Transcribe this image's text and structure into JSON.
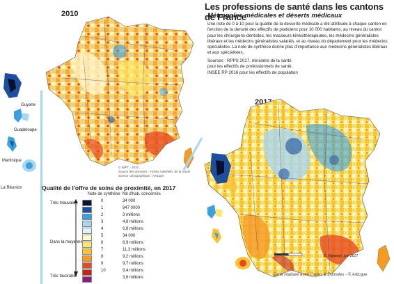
{
  "title": "Les professions de santé dans les cantons de France",
  "subtitle": "Métropoles médicales et déserts médicaux",
  "description": "Une note de 0 à 10 pour la qualité de la desserte médicale a été attribuée à chaque canton en fonction de la densité des effectifs de praticiens pour 10 000 habitants, au niveau du canton pour les chirurgiens-dentistes, les masseurs-kinésithérapeutes, les médecins généralistes libéraux et les médecins généralistes salariés, et au niveau du département pour les médecins spécialistes. La note de synthèse donne plus d'importance aux médecins généralistes libéraux et aux spécialistes.",
  "sources": [
    "Sources : RPPS 2017, ministère de la santé",
    "pour les effectifs de professionnels de santé.",
    "INSEE RP 2016 pour les effectifs de population"
  ],
  "maps": {
    "map2010": {
      "year": "2010",
      "small_text": [
        "© IMFT - 2010",
        "Source des données : Fichier Adeli/Min. de la Santé",
        "Source cartographique : Articque"
      ]
    },
    "map2017": {
      "year": "2017",
      "scale_label": "0 200 km",
      "author": "É. Vigneron, juin 2017"
    }
  },
  "overseas": [
    {
      "name": "Guyane"
    },
    {
      "name": "Guadeloupe"
    },
    {
      "name": "Martinique"
    },
    {
      "name": "La Réunion"
    }
  ],
  "legend": {
    "title": "Qualité de l'offre de soins de proximité, en 2017",
    "col_note": "Note de synthèse",
    "col_hab": "Nb d'hab. concernés",
    "scale_labels": {
      "top": "Très mauvaise",
      "middle": "Dans la moyenne",
      "bottom": "Très favorable"
    },
    "classes": [
      {
        "note": "0",
        "habitants": "34 000",
        "color": "#0a1030"
      },
      {
        "note": "1",
        "habitants": "847 0000",
        "color": "#1d4f9e"
      },
      {
        "note": "2",
        "habitants": "3 millions",
        "color": "#3ba0dd"
      },
      {
        "note": "3",
        "habitants": "4,8 millions",
        "color": "#a9d6f0"
      },
      {
        "note": "4",
        "habitants": "6,8 millions",
        "color": "#e3f1fa"
      },
      {
        "note": "5",
        "habitants": "34 000",
        "color": "#fff9d0"
      },
      {
        "note": "6",
        "habitants": "8,9 millions",
        "color": "#fde86a"
      },
      {
        "note": "7",
        "habitants": "11,3 millions",
        "color": "#fcc232"
      },
      {
        "note": "8",
        "habitants": "9,2 millions",
        "color": "#f59a23"
      },
      {
        "note": "9",
        "habitants": "9,7 millions",
        "color": "#e64b1f"
      },
      {
        "note": "10",
        "habitants": "9,4 millions",
        "color": "#c0231a"
      },
      {
        "note": "",
        "habitants": "3,6 millions",
        "color": "#8a1f7a"
      }
    ]
  },
  "credit": "Carte réalisée avec Cartes & Données - © Articque"
}
